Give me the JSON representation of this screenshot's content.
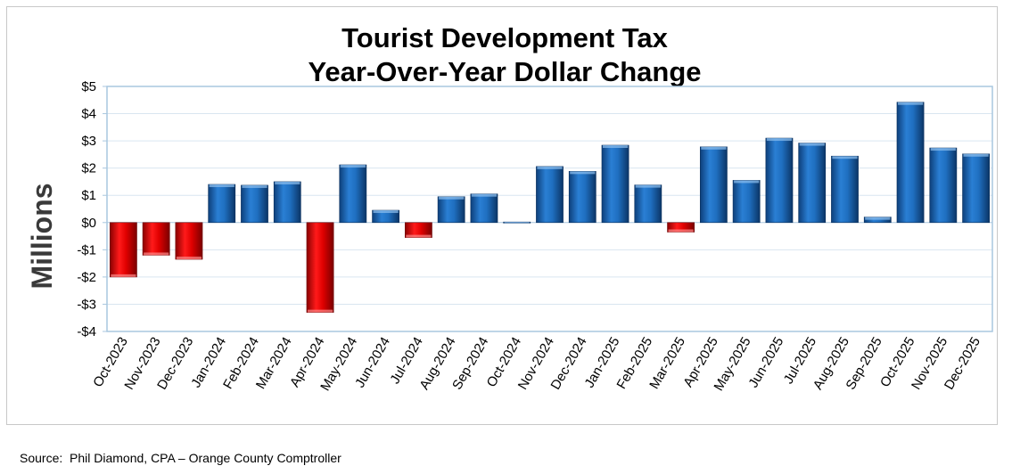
{
  "chart_data": {
    "type": "bar",
    "title": [
      "Tourist Development Tax",
      "Year-Over-Year Dollar Change"
    ],
    "ylabel": "Millions",
    "xlabel": "",
    "ylim": [
      -4,
      5
    ],
    "yticks": [
      5,
      4,
      3,
      2,
      1,
      0,
      -1,
      -2,
      -3,
      -4
    ],
    "ytick_labels": [
      "$5",
      "$4",
      "$3",
      "$2",
      "$1",
      "$0",
      "-$1",
      "-$2",
      "-$3",
      "-$4"
    ],
    "grid": true,
    "categories": [
      "Oct-2023",
      "Nov-2023",
      "Dec-2023",
      "Jan-2024",
      "Feb-2024",
      "Mar-2024",
      "Apr-2024",
      "May-2024",
      "Jun-2024",
      "Jul-2024",
      "Aug-2024",
      "Sep-2024",
      "Oct-2024",
      "Nov-2024",
      "Dec-2024",
      "Jan-2025",
      "Feb-2025",
      "Mar-2025",
      "Apr-2025",
      "May-2025",
      "Jun-2025",
      "Jul-2025",
      "Aug-2025",
      "Sep-2025",
      "Oct-2025",
      "Nov-2025",
      "Dec-2025"
    ],
    "values": [
      -2.0,
      -1.2,
      -1.35,
      1.4,
      1.37,
      1.5,
      -3.3,
      2.12,
      0.45,
      -0.55,
      0.95,
      1.05,
      0.02,
      2.06,
      1.88,
      2.84,
      1.38,
      -0.35,
      2.78,
      1.55,
      3.1,
      2.92,
      2.44,
      0.2,
      4.42,
      2.74,
      2.52
    ],
    "colors": {
      "positive": "#1f6fc0",
      "negative": "#e00000"
    }
  },
  "source": "Source:  Phil Diamond, CPA – Orange County Comptroller"
}
